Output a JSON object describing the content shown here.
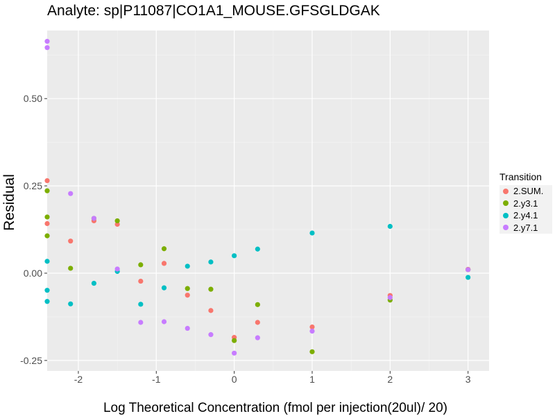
{
  "chart_data": {
    "type": "scatter",
    "title": "Analyte: sp|P11087|CO1A1_MOUSE.GFSGLDGAK",
    "xlabel": "Log Theoretical Concentration (fmol per injection(20ul)/ 20)",
    "ylabel": "Residual",
    "xlim": [
      -2.4,
      3.27
    ],
    "ylim": [
      -0.28,
      0.695
    ],
    "xticks": [
      -2,
      -1,
      0,
      1,
      2,
      3
    ],
    "xtick_labels": [
      "-2",
      "-1",
      "0",
      "1",
      "2",
      "3"
    ],
    "yticks": [
      -0.25,
      0,
      0.25,
      0.5
    ],
    "ytick_labels": [
      "-0.25",
      "0.00",
      "0.25",
      "0.50"
    ],
    "grid": true,
    "legend": {
      "title": "Transition",
      "placement": "right"
    },
    "series": [
      {
        "name": "2.SUM.",
        "color": "#F8766D",
        "points": [
          [
            -2.4,
            0.265
          ],
          [
            -2.4,
            0.142
          ],
          [
            -2.1,
            0.092
          ],
          [
            -1.8,
            0.15
          ],
          [
            -1.5,
            0.14
          ],
          [
            -1.2,
            -0.023
          ],
          [
            -0.9,
            0.028
          ],
          [
            -0.6,
            -0.063
          ],
          [
            -0.3,
            -0.107
          ],
          [
            0.0,
            -0.184
          ],
          [
            0.3,
            -0.141
          ],
          [
            1.0,
            -0.154
          ],
          [
            2.0,
            -0.064
          ],
          [
            3.0,
            0.011
          ]
        ]
      },
      {
        "name": "2.y3.1",
        "color": "#7CAE00",
        "points": [
          [
            -2.4,
            0.236
          ],
          [
            -2.4,
            0.161
          ],
          [
            -2.4,
            0.107
          ],
          [
            -2.1,
            0.014
          ],
          [
            -1.8,
            0.157
          ],
          [
            -1.5,
            0.15
          ],
          [
            -1.2,
            0.024
          ],
          [
            -0.9,
            0.07
          ],
          [
            -0.6,
            -0.044
          ],
          [
            -0.3,
            -0.046
          ],
          [
            0.0,
            -0.193
          ],
          [
            0.3,
            -0.09
          ],
          [
            1.0,
            -0.225
          ],
          [
            2.0,
            -0.077
          ],
          [
            3.0,
            0.01
          ]
        ]
      },
      {
        "name": "2.y4.1",
        "color": "#00BFC4",
        "points": [
          [
            -2.4,
            0.034
          ],
          [
            -2.4,
            -0.049
          ],
          [
            -2.4,
            -0.081
          ],
          [
            -2.1,
            -0.088
          ],
          [
            -1.8,
            -0.029
          ],
          [
            -1.5,
            0.005
          ],
          [
            -1.2,
            -0.089
          ],
          [
            -0.9,
            -0.042
          ],
          [
            -0.6,
            0.02
          ],
          [
            -0.3,
            0.032
          ],
          [
            0.0,
            0.05
          ],
          [
            0.3,
            0.069
          ],
          [
            1.0,
            0.115
          ],
          [
            2.0,
            0.134
          ],
          [
            3.0,
            -0.012
          ]
        ]
      },
      {
        "name": "2.y7.1",
        "color": "#C77CFF",
        "points": [
          [
            -2.4,
            0.664
          ],
          [
            -2.4,
            0.646
          ],
          [
            -2.1,
            0.228
          ],
          [
            -1.8,
            0.157
          ],
          [
            -1.5,
            0.012
          ],
          [
            -1.2,
            -0.141
          ],
          [
            -0.9,
            -0.139
          ],
          [
            -0.6,
            -0.158
          ],
          [
            -0.3,
            -0.176
          ],
          [
            0.0,
            -0.229
          ],
          [
            0.3,
            -0.185
          ],
          [
            1.0,
            -0.166
          ],
          [
            2.0,
            -0.07
          ],
          [
            3.0,
            0.01
          ]
        ]
      }
    ]
  }
}
